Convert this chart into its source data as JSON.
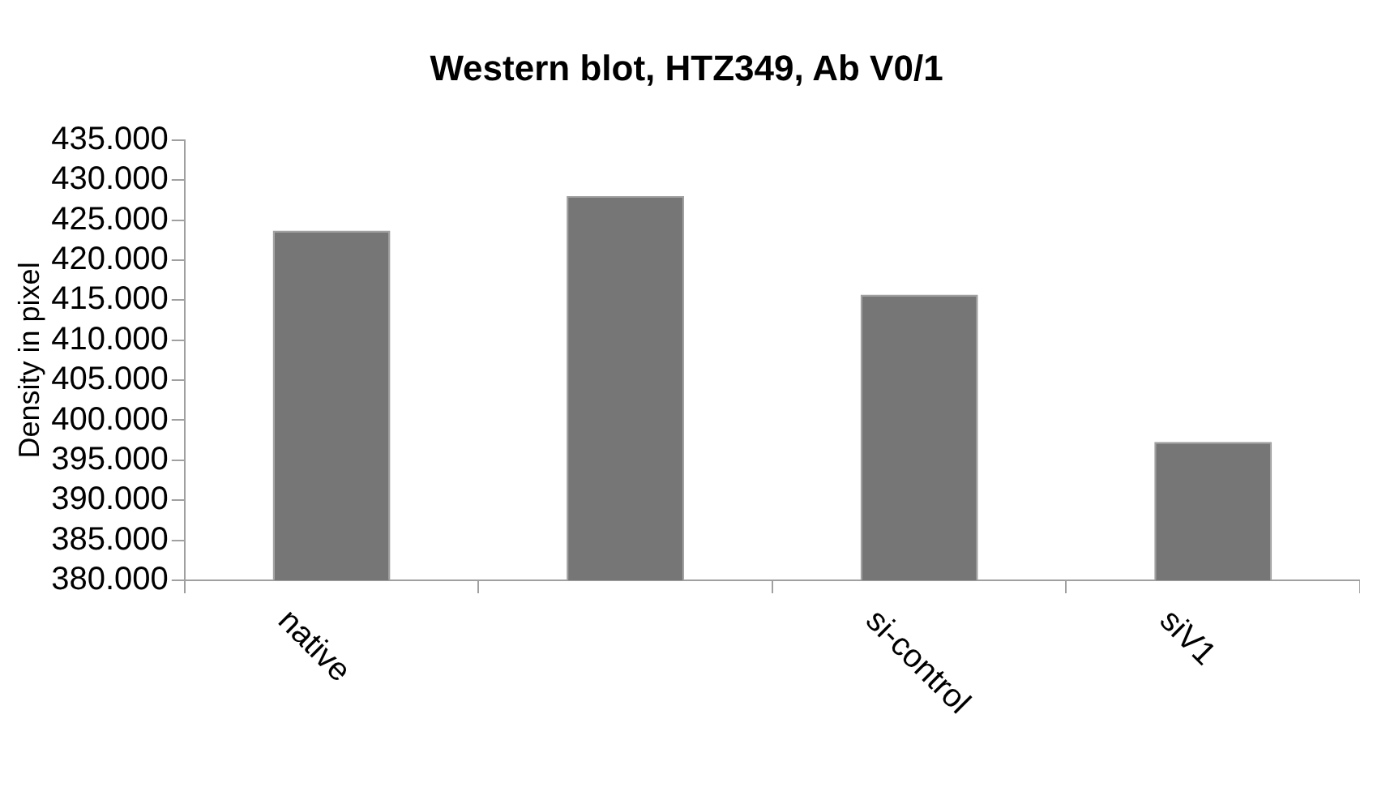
{
  "chart_data": {
    "type": "bar",
    "title": "Western blot, HTZ349, Ab V0/1",
    "ylabel": "Density in pixel",
    "categories": [
      "native",
      null,
      "si-control",
      "siV1"
    ],
    "values": [
      423700,
      428000,
      415700,
      397300
    ],
    "color": "#767676",
    "ylim": [
      380000,
      435000
    ],
    "yticks": [
      {
        "value": 380000,
        "label": "380.000"
      },
      {
        "value": 385000,
        "label": "385.000"
      },
      {
        "value": 390000,
        "label": "390.000"
      },
      {
        "value": 395000,
        "label": "395.000"
      },
      {
        "value": 400000,
        "label": "400.000"
      },
      {
        "value": 405000,
        "label": "405.000"
      },
      {
        "value": 410000,
        "label": "410.000"
      },
      {
        "value": 415000,
        "label": "415.000"
      },
      {
        "value": 420000,
        "label": "420.000"
      },
      {
        "value": 425000,
        "label": "425.000"
      },
      {
        "value": 430000,
        "label": "430.000"
      },
      {
        "value": 435000,
        "label": "435.000"
      }
    ],
    "grid": false,
    "legend": false
  }
}
